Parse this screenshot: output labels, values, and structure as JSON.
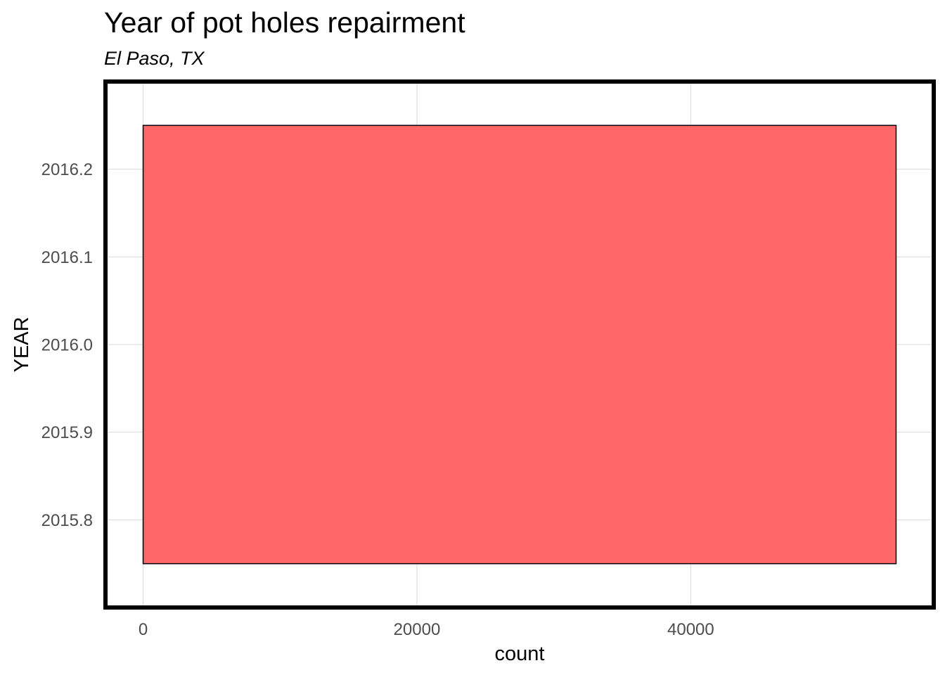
{
  "chart_data": {
    "type": "bar",
    "orientation": "horizontal",
    "title": "Year of pot holes repairment",
    "subtitle": "El Paso, TX",
    "xlabel": "count",
    "ylabel": "YEAR",
    "bars": [
      {
        "y_center": 2016.0,
        "y_width": 0.5,
        "value": 55000
      }
    ],
    "x_ticks": [
      "0",
      "20000",
      "40000"
    ],
    "x_tick_values": [
      0,
      20000,
      40000
    ],
    "y_ticks": [
      "2015.8",
      "2015.9",
      "2016.0",
      "2016.1",
      "2016.2"
    ],
    "y_tick_values": [
      2015.8,
      2015.9,
      2016.0,
      2016.1,
      2016.2
    ],
    "xlim": [
      -2750,
      57750
    ],
    "ylim": [
      2015.7,
      2016.3
    ],
    "grid": true,
    "panel_border": true,
    "colors": {
      "bar_fill": "#ff6666",
      "bar_stroke": "#000000",
      "grid": "#d9d9d9",
      "border": "#000000"
    }
  }
}
